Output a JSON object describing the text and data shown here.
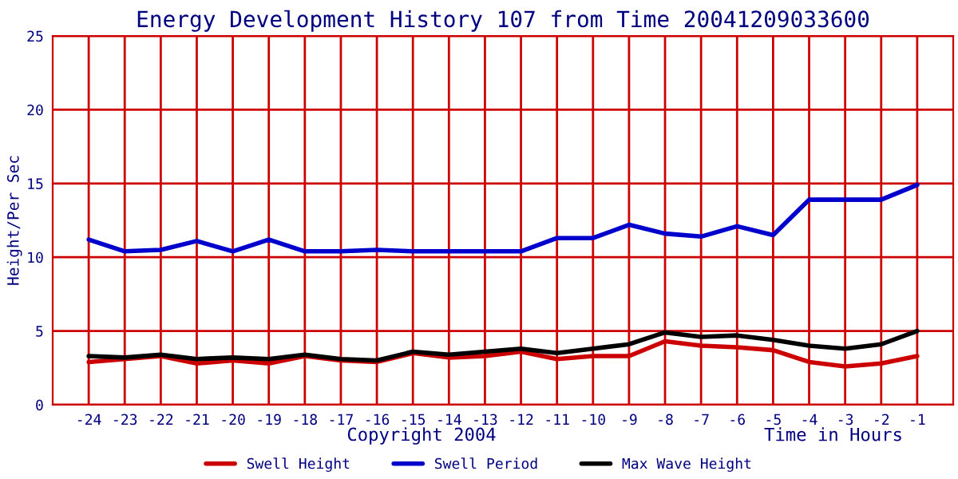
{
  "chart_data": {
    "type": "line",
    "title": "Energy Development History 107 from Time 20041209033600",
    "xlabel": "Time in Hours",
    "ylabel": "Height/Per Sec",
    "annotations": [
      "Copyright 2004"
    ],
    "x": [
      -24,
      -23,
      -22,
      -21,
      -20,
      -19,
      -18,
      -17,
      -16,
      -15,
      -14,
      -13,
      -12,
      -11,
      -10,
      -9,
      -8,
      -7,
      -6,
      -5,
      -4,
      -3,
      -2,
      -1
    ],
    "series": [
      {
        "name": "Swell Height",
        "color": "#cc0000",
        "values": [
          2.9,
          3.1,
          3.3,
          2.8,
          3.0,
          2.8,
          3.3,
          3.0,
          2.9,
          3.5,
          3.2,
          3.3,
          3.6,
          3.1,
          3.3,
          3.3,
          4.3,
          4.0,
          3.9,
          3.7,
          2.9,
          2.6,
          2.8,
          3.3
        ]
      },
      {
        "name": "Swell Period",
        "color": "#0000cc",
        "values": [
          11.2,
          10.4,
          10.5,
          11.1,
          10.4,
          11.2,
          10.4,
          10.4,
          10.5,
          10.4,
          10.4,
          10.4,
          10.4,
          11.3,
          11.3,
          12.2,
          11.6,
          11.4,
          12.1,
          11.5,
          13.9,
          13.9,
          13.9,
          14.9
        ]
      },
      {
        "name": "Max Wave Height",
        "color": "#000000",
        "values": [
          3.3,
          3.2,
          3.4,
          3.1,
          3.2,
          3.1,
          3.4,
          3.1,
          3.0,
          3.6,
          3.4,
          3.6,
          3.8,
          3.5,
          3.8,
          4.1,
          4.9,
          4.6,
          4.7,
          4.4,
          4.0,
          3.8,
          4.1,
          5.0
        ]
      }
    ],
    "xlim": [
      -25,
      0
    ],
    "xticks": [
      -24,
      -23,
      -22,
      -21,
      -20,
      -19,
      -18,
      -17,
      -16,
      -15,
      -14,
      -13,
      -12,
      -11,
      -10,
      -9,
      -8,
      -7,
      -6,
      -5,
      -4,
      -3,
      -2,
      -1
    ],
    "ylim": [
      0,
      25
    ],
    "yticks": [
      0,
      5,
      10,
      15,
      20,
      25
    ],
    "grid": true,
    "legend": "bottom",
    "marker": "none",
    "line_style": "solid"
  }
}
